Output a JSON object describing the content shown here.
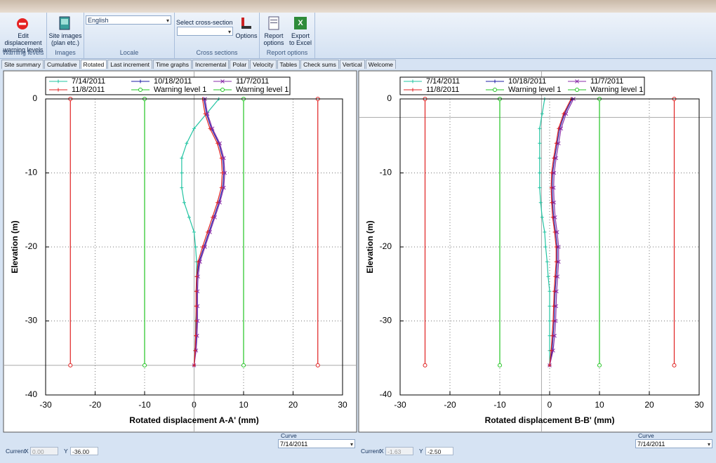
{
  "ribbon": {
    "groups": [
      {
        "label": "Warning levels",
        "buttons": [
          "Edit displacement warning levels"
        ]
      },
      {
        "label": "Images",
        "buttons": [
          "Site images (plan etc.)"
        ]
      },
      {
        "label": "Locale",
        "select": "English"
      },
      {
        "label": "Cross sections",
        "select_label": "Select cross-section",
        "buttons": [
          "Options"
        ]
      },
      {
        "label": "Report options",
        "buttons": [
          "Report options",
          "Export to Excel"
        ]
      }
    ]
  },
  "tabs": [
    "Site summary",
    "Cumulative",
    "Rotated",
    "Last increment",
    "Time graphs",
    "Incremental",
    "Polar",
    "Velocity",
    "Tables",
    "Check sums",
    "Vertical",
    "Welcome"
  ],
  "active_tab": 2,
  "footer": {
    "current_label": "Current",
    "x_label": "X",
    "y_label": "Y",
    "curve_label": "Curve",
    "curves": [
      "7/14/2011",
      "7/14/2011"
    ]
  },
  "chart_data": [
    {
      "type": "line",
      "xlabel": "Rotated displacement A-A' (mm)",
      "ylabel": "Elevation (m)",
      "xlim": [
        -30,
        30
      ],
      "ylim": [
        -40,
        0
      ],
      "xticks": [
        -30,
        -20,
        -10,
        0,
        10,
        20,
        30
      ],
      "yticks": [
        0,
        -10,
        -20,
        -30,
        -40
      ],
      "grid": true,
      "cursor": {
        "x": {
          "value": 0,
          "label": "0.00"
        },
        "y": {
          "value": -36,
          "label": "-36.00"
        }
      },
      "series": [
        {
          "name": "7/14/2011",
          "color": "#22c4a2",
          "marker": "plus",
          "x": [
            5,
            2.5,
            0,
            -1.5,
            -2.5,
            -2.5,
            -2.5,
            -2,
            -1,
            0,
            0.3,
            0.5,
            0.5,
            0.5,
            0.5,
            0.3,
            0.3,
            0.2,
            0
          ],
          "y": [
            0,
            -2,
            -4,
            -6,
            -8,
            -10,
            -12,
            -14,
            -16,
            -18,
            -20,
            -22,
            -24,
            -26,
            -28,
            -30,
            -32,
            -34,
            -36
          ]
        },
        {
          "name": "10/18/2011",
          "color": "#1c1ca6",
          "marker": "plus",
          "x": [
            2,
            2.5,
            3.5,
            5,
            5.8,
            6,
            5.8,
            5,
            4,
            3,
            2,
            1,
            0.6,
            0.5,
            0.5,
            0.5,
            0.4,
            0.3,
            0
          ],
          "y": [
            0,
            -2,
            -4,
            -6,
            -8,
            -10,
            -12,
            -14,
            -16,
            -18,
            -20,
            -22,
            -24,
            -26,
            -28,
            -30,
            -32,
            -34,
            -36
          ]
        },
        {
          "name": "11/7/2011",
          "color": "#8a2ea8",
          "marker": "cross",
          "x": [
            2.2,
            2.7,
            3.7,
            5.2,
            6,
            6.2,
            6,
            5.2,
            4.2,
            3.2,
            2.2,
            1.2,
            0.8,
            0.7,
            0.7,
            0.7,
            0.6,
            0.4,
            0
          ],
          "y": [
            0,
            -2,
            -4,
            -6,
            -8,
            -10,
            -12,
            -14,
            -16,
            -18,
            -20,
            -22,
            -24,
            -26,
            -28,
            -30,
            -32,
            -34,
            -36
          ]
        },
        {
          "name": "11/8/2011",
          "color": "#e02020",
          "marker": "plus",
          "x": [
            1.7,
            2.2,
            3.2,
            4.7,
            5.5,
            5.7,
            5.5,
            4.7,
            3.7,
            2.7,
            1.7,
            0.8,
            0.5,
            0.4,
            0.4,
            0.4,
            0.3,
            0.2,
            0
          ],
          "y": [
            0,
            -2,
            -4,
            -6,
            -8,
            -10,
            -12,
            -14,
            -16,
            -18,
            -20,
            -22,
            -24,
            -26,
            -28,
            -30,
            -32,
            -34,
            -36
          ]
        },
        {
          "name": "Warning level 1",
          "color": "#22c422",
          "marker": "circle",
          "x": [
            -10,
            -10
          ],
          "y": [
            0,
            -36
          ]
        },
        {
          "name": "Warning level 1",
          "color": "#22c422",
          "marker": "circle",
          "x": [
            10,
            10
          ],
          "y": [
            0,
            -36
          ]
        },
        {
          "color": "#e02020",
          "marker": "circle",
          "x": [
            -25,
            -25
          ],
          "y": [
            0,
            -36
          ]
        },
        {
          "color": "#e02020",
          "marker": "circle",
          "x": [
            25,
            25
          ],
          "y": [
            0,
            -36
          ]
        }
      ]
    },
    {
      "type": "line",
      "xlabel": "Rotated displacement B-B' (mm)",
      "ylabel": "Elevation (m)",
      "xlim": [
        -30,
        30
      ],
      "ylim": [
        -40,
        0
      ],
      "xticks": [
        -30,
        -20,
        -10,
        0,
        10,
        20,
        30
      ],
      "yticks": [
        0,
        -10,
        -20,
        -30,
        -40
      ],
      "grid": true,
      "cursor": {
        "x": {
          "value": -1.63,
          "label": "-1.63"
        },
        "y": {
          "value": -2.5,
          "label": "-2.50"
        }
      },
      "series": [
        {
          "name": "7/14/2011",
          "color": "#22c4a2",
          "marker": "plus",
          "x": [
            -1,
            -1.5,
            -2,
            -2,
            -2,
            -2,
            -2,
            -1.8,
            -1.5,
            -1,
            -0.8,
            -0.5,
            -0.3,
            0,
            0,
            0,
            0,
            0,
            0
          ],
          "y": [
            0,
            -2,
            -4,
            -6,
            -8,
            -10,
            -12,
            -14,
            -16,
            -18,
            -20,
            -22,
            -24,
            -26,
            -28,
            -30,
            -32,
            -34,
            -36
          ]
        },
        {
          "name": "10/18/2011",
          "color": "#1c1ca6",
          "marker": "plus",
          "x": [
            4.5,
            3,
            2,
            1.5,
            1,
            0.6,
            0.5,
            0.6,
            0.8,
            1.2,
            1.5,
            1.5,
            1.3,
            1.1,
            1,
            0.9,
            0.7,
            0.5,
            0
          ],
          "y": [
            0,
            -2,
            -4,
            -6,
            -8,
            -10,
            -12,
            -14,
            -16,
            -18,
            -20,
            -22,
            -24,
            -26,
            -28,
            -30,
            -32,
            -34,
            -36
          ]
        },
        {
          "name": "11/7/2011",
          "color": "#8a2ea8",
          "marker": "cross",
          "x": [
            4.8,
            3.3,
            2.3,
            1.8,
            1.3,
            0.9,
            0.8,
            0.9,
            1.1,
            1.5,
            1.8,
            1.8,
            1.6,
            1.4,
            1.3,
            1.2,
            1,
            0.7,
            0
          ],
          "y": [
            0,
            -2,
            -4,
            -6,
            -8,
            -10,
            -12,
            -14,
            -16,
            -18,
            -20,
            -22,
            -24,
            -26,
            -28,
            -30,
            -32,
            -34,
            -36
          ]
        },
        {
          "name": "11/8/2011",
          "color": "#e02020",
          "marker": "plus",
          "x": [
            4.3,
            2.8,
            1.8,
            1.3,
            0.8,
            0.4,
            0.3,
            0.4,
            0.6,
            1,
            1.3,
            1.3,
            1.1,
            0.9,
            0.8,
            0.7,
            0.5,
            0.3,
            0
          ],
          "y": [
            0,
            -2,
            -4,
            -6,
            -8,
            -10,
            -12,
            -14,
            -16,
            -18,
            -20,
            -22,
            -24,
            -26,
            -28,
            -30,
            -32,
            -34,
            -36
          ]
        },
        {
          "name": "Warning level 1",
          "color": "#22c422",
          "marker": "circle",
          "x": [
            -10,
            -10
          ],
          "y": [
            0,
            -36
          ]
        },
        {
          "name": "Warning level 1",
          "color": "#22c422",
          "marker": "circle",
          "x": [
            10,
            10
          ],
          "y": [
            0,
            -36
          ]
        },
        {
          "color": "#e02020",
          "marker": "circle",
          "x": [
            -25,
            -25
          ],
          "y": [
            0,
            -36
          ]
        },
        {
          "color": "#e02020",
          "marker": "circle",
          "x": [
            25,
            25
          ],
          "y": [
            0,
            -36
          ]
        }
      ]
    }
  ]
}
